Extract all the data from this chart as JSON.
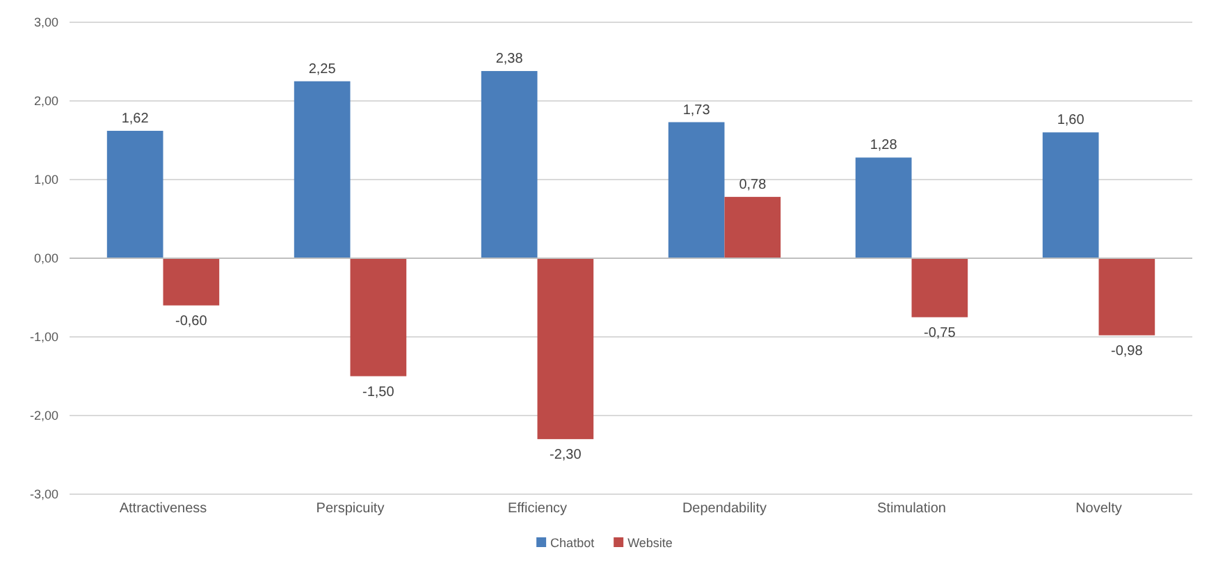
{
  "chart_data": {
    "type": "bar",
    "categories": [
      "Attractiveness",
      "Perspicuity",
      "Efficiency",
      "Dependability",
      "Stimulation",
      "Novelty"
    ],
    "series": [
      {
        "name": "Chatbot",
        "color": "#4a7ebb",
        "values": [
          1.62,
          2.25,
          2.38,
          1.73,
          1.28,
          1.6
        ],
        "value_labels": [
          "1,62",
          "2,25",
          "2,38",
          "1,73",
          "1,28",
          "1,60"
        ]
      },
      {
        "name": "Website",
        "color": "#be4b48",
        "values": [
          -0.6,
          -1.5,
          -2.3,
          0.78,
          -0.75,
          -0.98
        ],
        "value_labels": [
          "-0,60",
          "-1,50",
          "-2,30",
          "0,78",
          "-0,75",
          "-0,98"
        ]
      }
    ],
    "ylim": [
      -3,
      3
    ],
    "yticks": [
      {
        "value": 3,
        "label": "3,00"
      },
      {
        "value": 2,
        "label": "2,00"
      },
      {
        "value": 1,
        "label": "1,00"
      },
      {
        "value": 0,
        "label": "0,00"
      },
      {
        "value": -1,
        "label": "-1,00"
      },
      {
        "value": -2,
        "label": "-2,00"
      },
      {
        "value": -3,
        "label": "-3,00"
      }
    ],
    "grid": "y",
    "legend": "bottom"
  }
}
